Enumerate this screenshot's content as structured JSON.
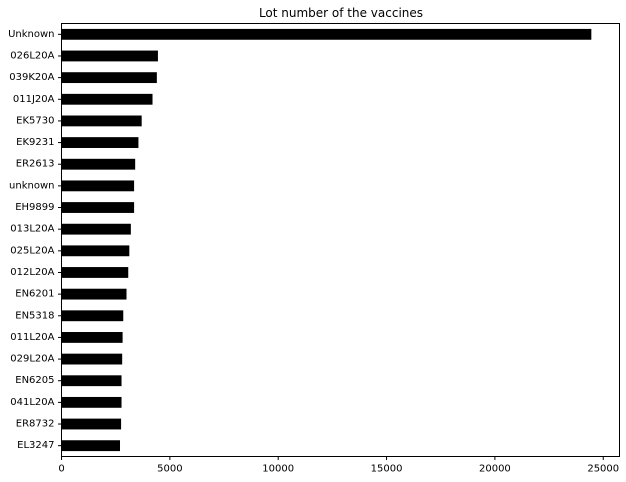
{
  "chart_data": {
    "type": "bar",
    "orientation": "horizontal",
    "title": "Lot number of the vaccines",
    "xlabel": "",
    "ylabel": "",
    "categories": [
      "Unknown",
      "026L20A",
      "039K20A",
      "011J20A",
      "EK5730",
      "EK9231",
      "ER2613",
      "unknown",
      "EH9899",
      "013L20A",
      "025L20A",
      "012L20A",
      "EN6201",
      "EN5318",
      "011L20A",
      "029L20A",
      "EN6205",
      "041L20A",
      "ER8732",
      "EL3247"
    ],
    "values": [
      24450,
      4450,
      4400,
      4200,
      3700,
      3550,
      3400,
      3350,
      3350,
      3200,
      3130,
      3080,
      3000,
      2850,
      2820,
      2800,
      2770,
      2770,
      2750,
      2700
    ],
    "xlim": [
      0,
      25750
    ],
    "xticks": [
      0,
      5000,
      10000,
      15000,
      20000,
      25000
    ],
    "grid": false,
    "legend": "none",
    "bar_color": "#000000"
  }
}
